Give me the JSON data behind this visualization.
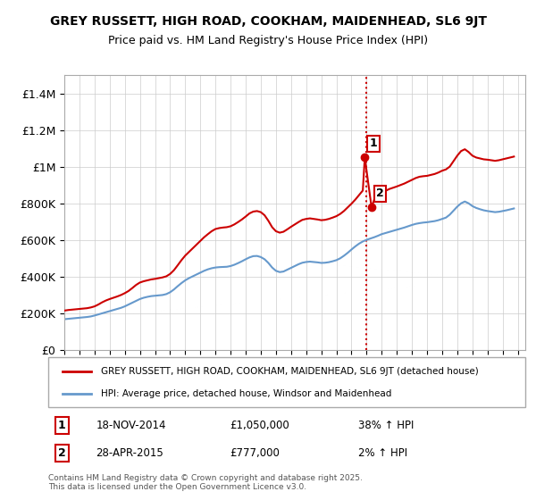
{
  "title": "GREY RUSSETT, HIGH ROAD, COOKHAM, MAIDENHEAD, SL6 9JT",
  "subtitle": "Price paid vs. HM Land Registry's House Price Index (HPI)",
  "ylabel_ticks": [
    "£0",
    "£200K",
    "£400K",
    "£600K",
    "£800K",
    "£1M",
    "£1.2M",
    "£1.4M"
  ],
  "ytick_vals": [
    0,
    200000,
    400000,
    600000,
    800000,
    1000000,
    1200000,
    1400000
  ],
  "ylim": [
    0,
    1500000
  ],
  "xlim_start": 1995.0,
  "xlim_end": 2025.5,
  "red_line_color": "#cc0000",
  "blue_line_color": "#6699cc",
  "vline_color": "#cc0000",
  "vline_style": "dotted",
  "legend1_label": "GREY RUSSETT, HIGH ROAD, COOKHAM, MAIDENHEAD, SL6 9JT (detached house)",
  "legend2_label": "HPI: Average price, detached house, Windsor and Maidenhead",
  "annotation1_num": "1",
  "annotation1_date": "18-NOV-2014",
  "annotation1_price": "£1,050,000",
  "annotation1_hpi": "38% ↑ HPI",
  "annotation2_num": "2",
  "annotation2_date": "28-APR-2015",
  "annotation2_price": "£777,000",
  "annotation2_hpi": "2% ↑ HPI",
  "footer": "Contains HM Land Registry data © Crown copyright and database right 2025.\nThis data is licensed under the Open Government Licence v3.0.",
  "sale1_x": 2014.88,
  "sale1_y": 1050000,
  "sale2_x": 2015.33,
  "sale2_y": 777000,
  "vline_x": 2015.0,
  "red_data": {
    "x": [
      1995.0,
      1995.25,
      1995.5,
      1995.75,
      1996.0,
      1996.25,
      1996.5,
      1996.75,
      1997.0,
      1997.25,
      1997.5,
      1997.75,
      1998.0,
      1998.25,
      1998.5,
      1998.75,
      1999.0,
      1999.25,
      1999.5,
      1999.75,
      2000.0,
      2000.25,
      2000.5,
      2000.75,
      2001.0,
      2001.25,
      2001.5,
      2001.75,
      2002.0,
      2002.25,
      2002.5,
      2002.75,
      2003.0,
      2003.25,
      2003.5,
      2003.75,
      2004.0,
      2004.25,
      2004.5,
      2004.75,
      2005.0,
      2005.25,
      2005.5,
      2005.75,
      2006.0,
      2006.25,
      2006.5,
      2006.75,
      2007.0,
      2007.25,
      2007.5,
      2007.75,
      2008.0,
      2008.25,
      2008.5,
      2008.75,
      2009.0,
      2009.25,
      2009.5,
      2009.75,
      2010.0,
      2010.25,
      2010.5,
      2010.75,
      2011.0,
      2011.25,
      2011.5,
      2011.75,
      2012.0,
      2012.25,
      2012.5,
      2012.75,
      2013.0,
      2013.25,
      2013.5,
      2013.75,
      2014.0,
      2014.25,
      2014.5,
      2014.75,
      2014.88,
      2015.33,
      2015.5,
      2015.75,
      2016.0,
      2016.25,
      2016.5,
      2016.75,
      2017.0,
      2017.25,
      2017.5,
      2017.75,
      2018.0,
      2018.25,
      2018.5,
      2018.75,
      2019.0,
      2019.25,
      2019.5,
      2019.75,
      2020.0,
      2020.25,
      2020.5,
      2020.75,
      2021.0,
      2021.25,
      2021.5,
      2021.75,
      2022.0,
      2022.25,
      2022.5,
      2022.75,
      2023.0,
      2023.25,
      2023.5,
      2023.75,
      2024.0,
      2024.25,
      2024.5,
      2024.75
    ],
    "y": [
      215000,
      218000,
      220000,
      222000,
      224000,
      226000,
      228000,
      232000,
      238000,
      248000,
      260000,
      270000,
      278000,
      285000,
      292000,
      300000,
      310000,
      322000,
      338000,
      355000,
      368000,
      375000,
      380000,
      385000,
      388000,
      392000,
      396000,
      402000,
      415000,
      435000,
      462000,
      490000,
      515000,
      535000,
      555000,
      575000,
      595000,
      615000,
      632000,
      648000,
      660000,
      665000,
      668000,
      670000,
      675000,
      685000,
      698000,
      712000,
      728000,
      745000,
      755000,
      758000,
      752000,
      735000,
      705000,
      670000,
      648000,
      640000,
      645000,
      658000,
      672000,
      685000,
      698000,
      710000,
      715000,
      718000,
      715000,
      712000,
      708000,
      710000,
      715000,
      722000,
      730000,
      742000,
      758000,
      778000,
      798000,
      820000,
      845000,
      870000,
      1050000,
      777000,
      820000,
      840000,
      855000,
      868000,
      878000,
      885000,
      892000,
      900000,
      908000,
      918000,
      928000,
      938000,
      945000,
      948000,
      950000,
      955000,
      960000,
      968000,
      978000,
      985000,
      1000000,
      1030000,
      1060000,
      1085000,
      1095000,
      1080000,
      1060000,
      1050000,
      1045000,
      1040000,
      1038000,
      1035000,
      1032000,
      1035000,
      1040000,
      1045000,
      1050000,
      1055000
    ]
  },
  "blue_data": {
    "x": [
      1995.0,
      1995.25,
      1995.5,
      1995.75,
      1996.0,
      1996.25,
      1996.5,
      1996.75,
      1997.0,
      1997.25,
      1997.5,
      1997.75,
      1998.0,
      1998.25,
      1998.5,
      1998.75,
      1999.0,
      1999.25,
      1999.5,
      1999.75,
      2000.0,
      2000.25,
      2000.5,
      2000.75,
      2001.0,
      2001.25,
      2001.5,
      2001.75,
      2002.0,
      2002.25,
      2002.5,
      2002.75,
      2003.0,
      2003.25,
      2003.5,
      2003.75,
      2004.0,
      2004.25,
      2004.5,
      2004.75,
      2005.0,
      2005.25,
      2005.5,
      2005.75,
      2006.0,
      2006.25,
      2006.5,
      2006.75,
      2007.0,
      2007.25,
      2007.5,
      2007.75,
      2008.0,
      2008.25,
      2008.5,
      2008.75,
      2009.0,
      2009.25,
      2009.5,
      2009.75,
      2010.0,
      2010.25,
      2010.5,
      2010.75,
      2011.0,
      2011.25,
      2011.5,
      2011.75,
      2012.0,
      2012.25,
      2012.5,
      2012.75,
      2013.0,
      2013.25,
      2013.5,
      2013.75,
      2014.0,
      2014.25,
      2014.5,
      2014.75,
      2015.0,
      2015.25,
      2015.5,
      2015.75,
      2016.0,
      2016.25,
      2016.5,
      2016.75,
      2017.0,
      2017.25,
      2017.5,
      2017.75,
      2018.0,
      2018.25,
      2018.5,
      2018.75,
      2019.0,
      2019.25,
      2019.5,
      2019.75,
      2020.0,
      2020.25,
      2020.5,
      2020.75,
      2021.0,
      2021.25,
      2021.5,
      2021.75,
      2022.0,
      2022.25,
      2022.5,
      2022.75,
      2023.0,
      2023.25,
      2023.5,
      2023.75,
      2024.0,
      2024.25,
      2024.5,
      2024.75
    ],
    "y": [
      168000,
      170000,
      172000,
      174000,
      176000,
      178000,
      180000,
      183000,
      188000,
      194000,
      200000,
      206000,
      212000,
      218000,
      224000,
      230000,
      238000,
      248000,
      258000,
      268000,
      278000,
      285000,
      290000,
      294000,
      296000,
      298000,
      300000,
      305000,
      315000,
      330000,
      348000,
      365000,
      380000,
      392000,
      402000,
      412000,
      422000,
      432000,
      440000,
      446000,
      450000,
      452000,
      453000,
      454000,
      458000,
      465000,
      474000,
      484000,
      495000,
      505000,
      512000,
      513000,
      507000,
      495000,
      475000,
      450000,
      432000,
      425000,
      428000,
      438000,
      448000,
      458000,
      468000,
      476000,
      480000,
      482000,
      480000,
      478000,
      475000,
      476000,
      479000,
      484000,
      490000,
      500000,
      514000,
      530000,
      548000,
      565000,
      580000,
      592000,
      601000,
      608000,
      615000,
      623000,
      632000,
      638000,
      644000,
      650000,
      656000,
      662000,
      668000,
      675000,
      682000,
      688000,
      692000,
      695000,
      697000,
      700000,
      703000,
      708000,
      715000,
      722000,
      738000,
      760000,
      782000,
      800000,
      810000,
      800000,
      785000,
      775000,
      768000,
      762000,
      758000,
      755000,
      752000,
      754000,
      758000,
      762000,
      767000,
      772000
    ]
  }
}
